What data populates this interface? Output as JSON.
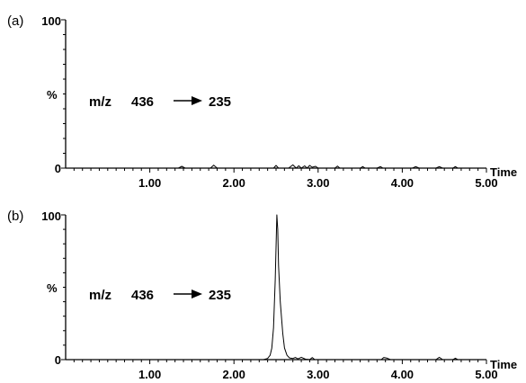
{
  "chart_data": [
    {
      "type": "line",
      "panel_label": "(a)",
      "ylabel": "%",
      "xlabel": "Time",
      "transition": {
        "prefix": "m/z",
        "from": "436",
        "to": "235"
      },
      "xlim": [
        0,
        5.0
      ],
      "ylim": [
        0,
        100
      ],
      "x_tick_labels": [
        "1.00",
        "2.00",
        "3.00",
        "4.00",
        "5.00"
      ],
      "y_tick_labels": [
        "0",
        "100"
      ],
      "x": [
        0.0,
        0.5,
        1.0,
        1.2,
        1.34,
        1.38,
        1.42,
        1.6,
        1.72,
        1.76,
        1.8,
        2.0,
        2.4,
        2.47,
        2.5,
        2.53,
        2.6,
        2.65,
        2.7,
        2.74,
        2.77,
        2.8,
        2.84,
        2.87,
        2.9,
        2.93,
        2.97,
        3.0,
        3.1,
        3.2,
        3.23,
        3.26,
        3.3,
        3.45,
        3.5,
        3.53,
        3.56,
        3.7,
        3.74,
        3.77,
        3.8,
        3.95,
        4.0,
        4.12,
        4.16,
        4.2,
        4.4,
        4.44,
        4.48,
        4.55,
        4.6,
        4.63,
        4.66,
        4.8,
        4.9,
        5.0
      ],
      "y": [
        0,
        0,
        0,
        0,
        0,
        1.2,
        0,
        0,
        0,
        2.0,
        0,
        0,
        0,
        0,
        1.8,
        0,
        0,
        0,
        2.2,
        0,
        1.6,
        0,
        1.5,
        0,
        1.8,
        0.6,
        1.2,
        0,
        0,
        0,
        1.4,
        0,
        0,
        0,
        0,
        1.0,
        0,
        0,
        1.0,
        0,
        0,
        0,
        0,
        0,
        1.0,
        0,
        0,
        1.0,
        0,
        0,
        0,
        1.0,
        0,
        0,
        0,
        0
      ]
    },
    {
      "type": "line",
      "panel_label": "(b)",
      "ylabel": "%",
      "xlabel": "Time",
      "transition": {
        "prefix": "m/z",
        "from": "436",
        "to": "235"
      },
      "xlim": [
        0,
        5.0
      ],
      "ylim": [
        0,
        100
      ],
      "x_tick_labels": [
        "1.00",
        "2.00",
        "3.00",
        "4.00",
        "5.00"
      ],
      "y_tick_labels": [
        "0",
        "100"
      ],
      "x": [
        0.0,
        1.0,
        2.0,
        2.35,
        2.4,
        2.43,
        2.45,
        2.47,
        2.49,
        2.51,
        2.52,
        2.53,
        2.55,
        2.58,
        2.6,
        2.63,
        2.66,
        2.7,
        2.73,
        2.76,
        2.8,
        2.85,
        2.9,
        2.93,
        2.96,
        3.0,
        3.5,
        3.75,
        3.78,
        3.82,
        3.86,
        4.0,
        4.4,
        4.44,
        4.48,
        4.6,
        4.63,
        4.66,
        5.0
      ],
      "y": [
        0,
        0,
        0,
        0,
        0.8,
        3,
        8,
        22,
        55,
        100,
        90,
        65,
        40,
        18,
        8,
        3,
        1.2,
        0.8,
        1.5,
        0.5,
        1.6,
        0.3,
        0,
        1.4,
        0,
        0,
        0,
        0,
        1.5,
        1.0,
        0,
        0,
        0,
        1.6,
        0,
        0,
        1.0,
        0,
        0
      ]
    }
  ]
}
